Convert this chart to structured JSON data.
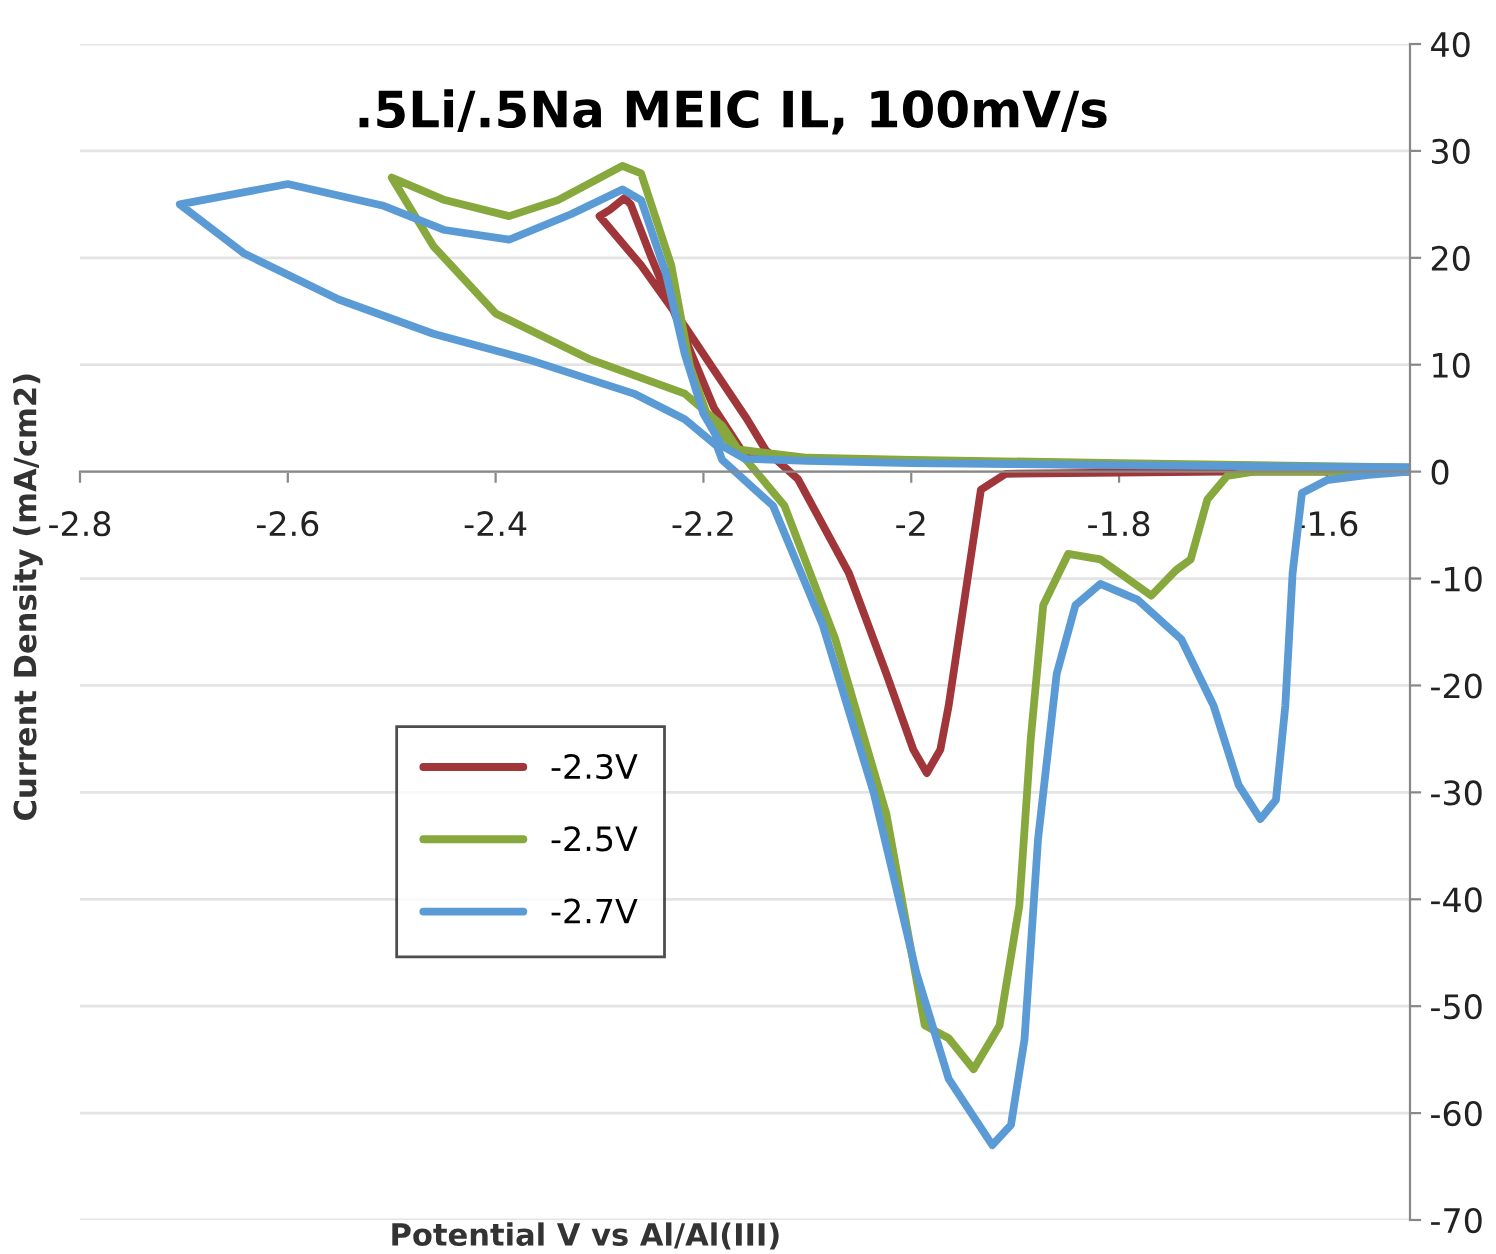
{
  "chart_data": {
    "type": "line",
    "title": ".5Li/.5Na MEIC IL, 100mV/s",
    "xlabel": "Potential V vs Al/Al(III)",
    "ylabel": "Current Density (mA/cm2)",
    "xlim": [
      -2.8,
      -1.52
    ],
    "xticks": [
      -2.8,
      -2.6,
      -2.4,
      -2.2,
      -2,
      -1.8,
      -1.6
    ],
    "ylim": [
      -70,
      40
    ],
    "yticks": [
      -70,
      -60,
      -50,
      -40,
      -30,
      -20,
      -10,
      0,
      10,
      20,
      30,
      40
    ],
    "grid": "y",
    "legend": "left",
    "marker": "none",
    "line_style": "solid",
    "series": [
      {
        "name": "-2.3V",
        "color": "#a0363a",
        "x": [
          -1.52,
          -1.8,
          -2.0,
          -2.12,
          -2.16,
          -2.19,
          -2.22,
          -2.25,
          -2.27,
          -2.276,
          -2.29,
          -2.3,
          -2.26,
          -2.218,
          -2.158,
          -2.14,
          -2.109,
          -2.06,
          -2.024,
          -1.998,
          -1.985,
          -1.972,
          -1.964,
          -1.945,
          -1.933,
          -1.909,
          -1.7,
          -1.52
        ],
        "values": [
          0.3,
          0.6,
          0.9,
          1.2,
          1.5,
          6,
          13,
          20,
          25,
          25.6,
          24.5,
          23.9,
          19.3,
          13.6,
          4.9,
          2,
          -0.7,
          -9.5,
          -18.9,
          -26,
          -28.2,
          -26,
          -21.9,
          -9.5,
          -1.7,
          -0.2,
          0,
          0
        ]
      },
      {
        "name": "-2.5V",
        "color": "#86a83c",
        "x": [
          -1.52,
          -1.8,
          -2.0,
          -2.1,
          -2.169,
          -2.195,
          -2.213,
          -2.231,
          -2.26,
          -2.278,
          -2.34,
          -2.387,
          -2.449,
          -2.5,
          -2.46,
          -2.4,
          -2.309,
          -2.218,
          -2.182,
          -2.164,
          -2.122,
          -2.073,
          -2.024,
          -1.987,
          -1.964,
          -1.94,
          -1.915,
          -1.896,
          -1.885,
          -1.873,
          -1.849,
          -1.818,
          -1.769,
          -1.745,
          -1.731,
          -1.715,
          -1.696,
          -1.67,
          -1.52
        ],
        "values": [
          0.4,
          0.8,
          1.1,
          1.3,
          2.1,
          4.9,
          9.9,
          19.3,
          27.9,
          28.6,
          25.4,
          23.9,
          25.4,
          27.5,
          21.1,
          14.8,
          10.5,
          7.3,
          4.3,
          1.7,
          -3.2,
          -15.7,
          -32,
          -51.8,
          -53,
          -55.9,
          -51.8,
          -40.6,
          -25,
          -12.5,
          -7.7,
          -8.2,
          -11.6,
          -9.2,
          -8.2,
          -2.6,
          -0.4,
          0,
          0
        ]
      },
      {
        "name": "-2.7V",
        "color": "#5b9bd5",
        "x": [
          -1.52,
          -1.8,
          -2.0,
          -2.1,
          -2.16,
          -2.182,
          -2.2,
          -2.218,
          -2.236,
          -2.26,
          -2.278,
          -2.327,
          -2.387,
          -2.449,
          -2.509,
          -2.6,
          -2.704,
          -2.642,
          -2.551,
          -2.46,
          -2.369,
          -2.267,
          -2.218,
          -2.187,
          -2.182,
          -2.133,
          -2.085,
          -2.036,
          -1.995,
          -1.964,
          -1.922,
          -1.904,
          -1.891,
          -1.878,
          -1.86,
          -1.842,
          -1.818,
          -1.782,
          -1.74,
          -1.709,
          -1.685,
          -1.664,
          -1.649,
          -1.64,
          -1.633,
          -1.624,
          -1.6,
          -1.56,
          -1.52
        ],
        "values": [
          0.4,
          0.6,
          0.8,
          1.0,
          1.2,
          2.4,
          5.4,
          11,
          18.5,
          25.4,
          26.4,
          24.1,
          21.7,
          22.6,
          24.9,
          26.9,
          25,
          20.4,
          16.1,
          12.9,
          10.5,
          7.3,
          4.9,
          2.4,
          1.1,
          -3.2,
          -14.4,
          -30.1,
          -46.9,
          -56.8,
          -63,
          -61.1,
          -53.1,
          -34.4,
          -18.9,
          -12.5,
          -10.5,
          -12,
          -15.7,
          -21.9,
          -29.3,
          -32.5,
          -30.7,
          -21.9,
          -9.5,
          -2,
          -0.8,
          -0.3,
          0
        ]
      }
    ]
  }
}
